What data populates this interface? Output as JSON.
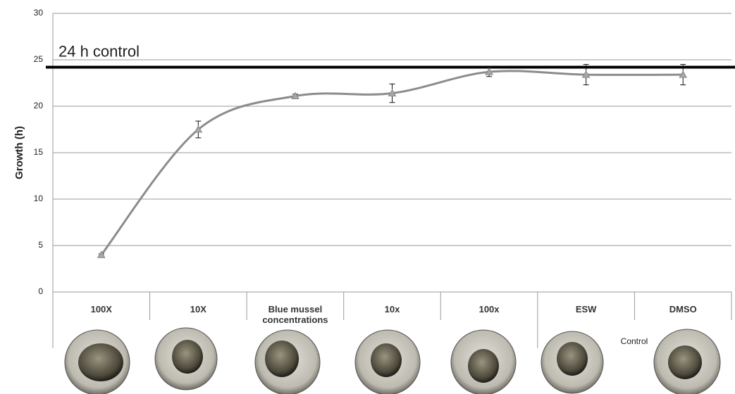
{
  "chart_data": {
    "type": "line",
    "y_label": "Growth (h)",
    "categories": [
      "100X",
      "10X",
      "Blue mussel concentrations",
      "10x",
      "100x",
      "ESW",
      "DMSO"
    ],
    "values": [
      4,
      17.5,
      21.1,
      21.4,
      23.7,
      23.4,
      23.4
    ],
    "errors": [
      0.1,
      0.9,
      0.2,
      1.0,
      0.5,
      1.1,
      1.1
    ],
    "color": "#8c8c8c",
    "ylim": [
      0,
      30
    ],
    "yticks": [
      0,
      5,
      10,
      15,
      20,
      25,
      30
    ],
    "grid": true,
    "reference_line": {
      "value": 24.2,
      "label": "24 h control"
    },
    "group_label": "Control"
  }
}
